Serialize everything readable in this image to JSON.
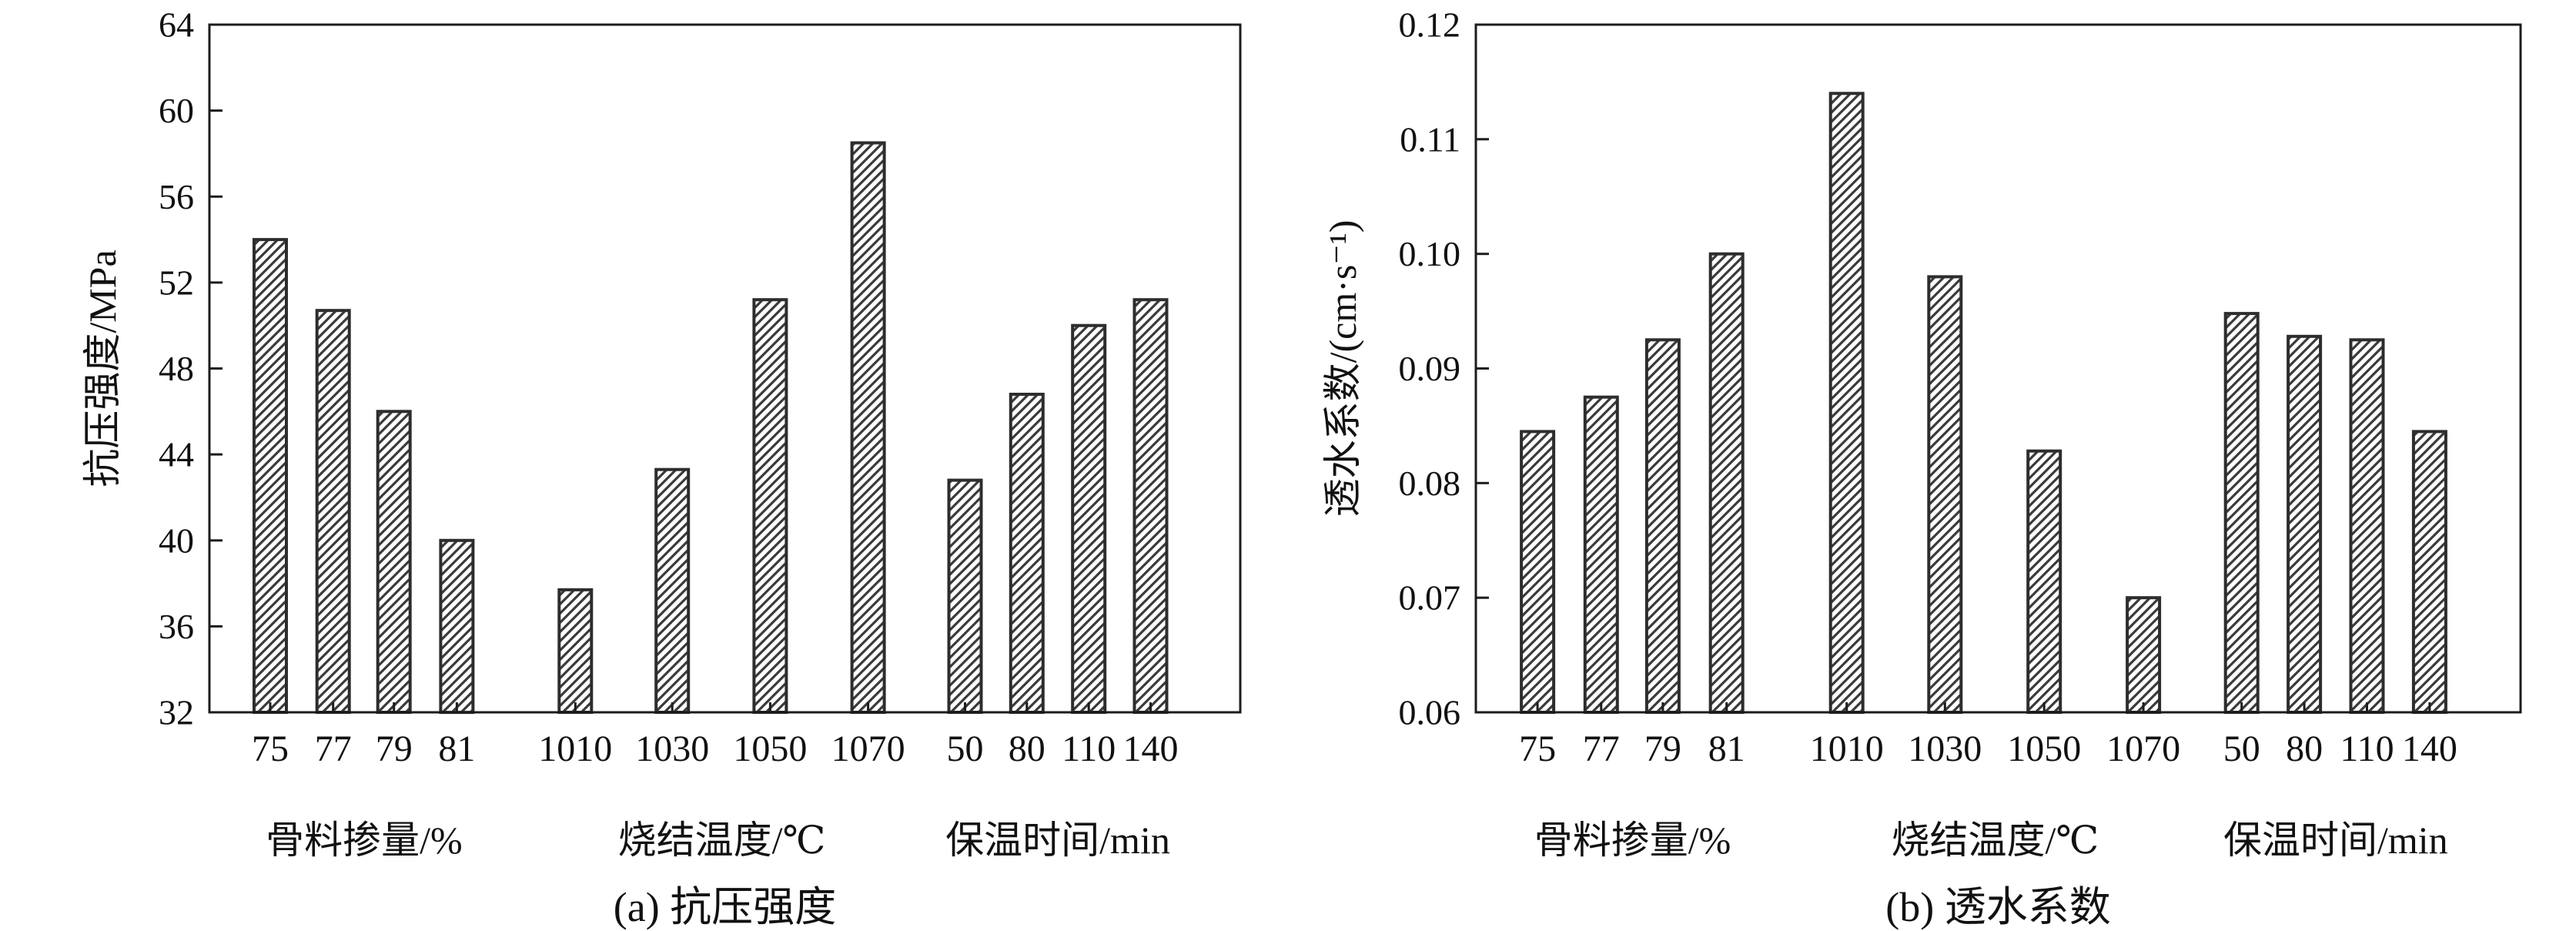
{
  "page": {
    "background": "#ffffff"
  },
  "style": {
    "axis_color": "#1c1c1c",
    "text_color": "#111111",
    "bar_stroke": "#2d2d2d",
    "hatch_color": "#3a3a3a",
    "bar_fill": "hatch-diagonal-forward"
  },
  "chart_data": [
    {
      "id": "a",
      "type": "bar",
      "caption": "(a) 抗压强度",
      "ylabel": "抗压强度/MPa",
      "xlabel": "",
      "ylim": [
        32,
        64
      ],
      "ytick_values": [
        32,
        36,
        40,
        44,
        48,
        52,
        56,
        60,
        64
      ],
      "ytick_labels": [
        "32",
        "36",
        "40",
        "44",
        "48",
        "52",
        "56",
        "60",
        "64"
      ],
      "grid": false,
      "legend": null,
      "groups": [
        {
          "label": "骨料掺量/%",
          "categories": [
            "75",
            "77",
            "79",
            "81"
          ],
          "values": [
            54.0,
            50.7,
            46.0,
            40.0
          ]
        },
        {
          "label": "烧结温度/℃",
          "categories": [
            "1010",
            "1030",
            "1050",
            "1070"
          ],
          "values": [
            37.7,
            43.3,
            51.2,
            58.5
          ]
        },
        {
          "label": "保温时间/min",
          "categories": [
            "50",
            "80",
            "110",
            "140"
          ],
          "values": [
            42.8,
            46.8,
            50.0,
            51.2
          ]
        }
      ]
    },
    {
      "id": "b",
      "type": "bar",
      "caption": "(b) 透水系数",
      "ylabel": "透水系数/(cm·s⁻¹)",
      "xlabel": "",
      "ylim": [
        0.06,
        0.12
      ],
      "ytick_values": [
        0.06,
        0.07,
        0.08,
        0.09,
        0.1,
        0.11,
        0.12
      ],
      "ytick_labels": [
        "0.06",
        "0.07",
        "0.08",
        "0.09",
        "0.10",
        "0.11",
        "0.12"
      ],
      "grid": false,
      "legend": null,
      "groups": [
        {
          "label": "骨料掺量/%",
          "categories": [
            "75",
            "77",
            "79",
            "81"
          ],
          "values": [
            0.0845,
            0.0875,
            0.0925,
            0.1
          ]
        },
        {
          "label": "烧结温度/℃",
          "categories": [
            "1010",
            "1030",
            "1050",
            "1070"
          ],
          "values": [
            0.114,
            0.098,
            0.0828,
            0.07
          ]
        },
        {
          "label": "保温时间/min",
          "categories": [
            "50",
            "80",
            "110",
            "140"
          ],
          "values": [
            0.0948,
            0.0928,
            0.0925,
            0.0845
          ]
        }
      ]
    }
  ]
}
